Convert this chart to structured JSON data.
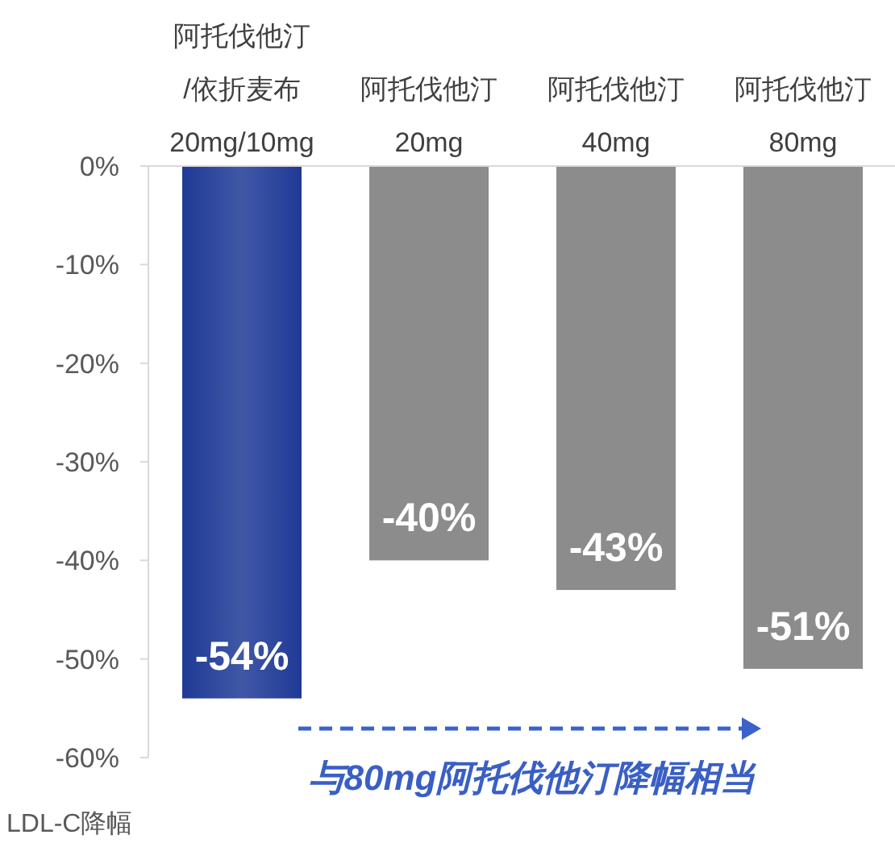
{
  "chart_data": {
    "type": "bar",
    "categories": [
      "阿托伐他汀\n/依折麦布\n20mg/10mg",
      "阿托伐他汀\n20mg",
      "阿托伐他汀\n40mg",
      "阿托伐他汀\n80mg"
    ],
    "values": [
      -54,
      -40,
      -43,
      -51
    ],
    "colors": [
      "#1f3a96",
      "#8c8c8c",
      "#8c8c8c",
      "#8c8c8c"
    ],
    "value_labels": [
      "-54%",
      "-40%",
      "-43%",
      "-51%"
    ],
    "ylim": [
      -60,
      0
    ],
    "yticks": [
      {
        "value": 0,
        "label": "0%"
      },
      {
        "value": -10,
        "label": "-10%"
      },
      {
        "value": -20,
        "label": "-20%"
      },
      {
        "value": -30,
        "label": "-30%"
      },
      {
        "value": -40,
        "label": "-40%"
      },
      {
        "value": -50,
        "label": "-50%"
      },
      {
        "value": -60,
        "label": "-60%"
      }
    ],
    "ylabel": "LDL-C降幅",
    "annotations": [
      "与80mg阿托伐他汀降幅相当"
    ],
    "grid": false
  }
}
